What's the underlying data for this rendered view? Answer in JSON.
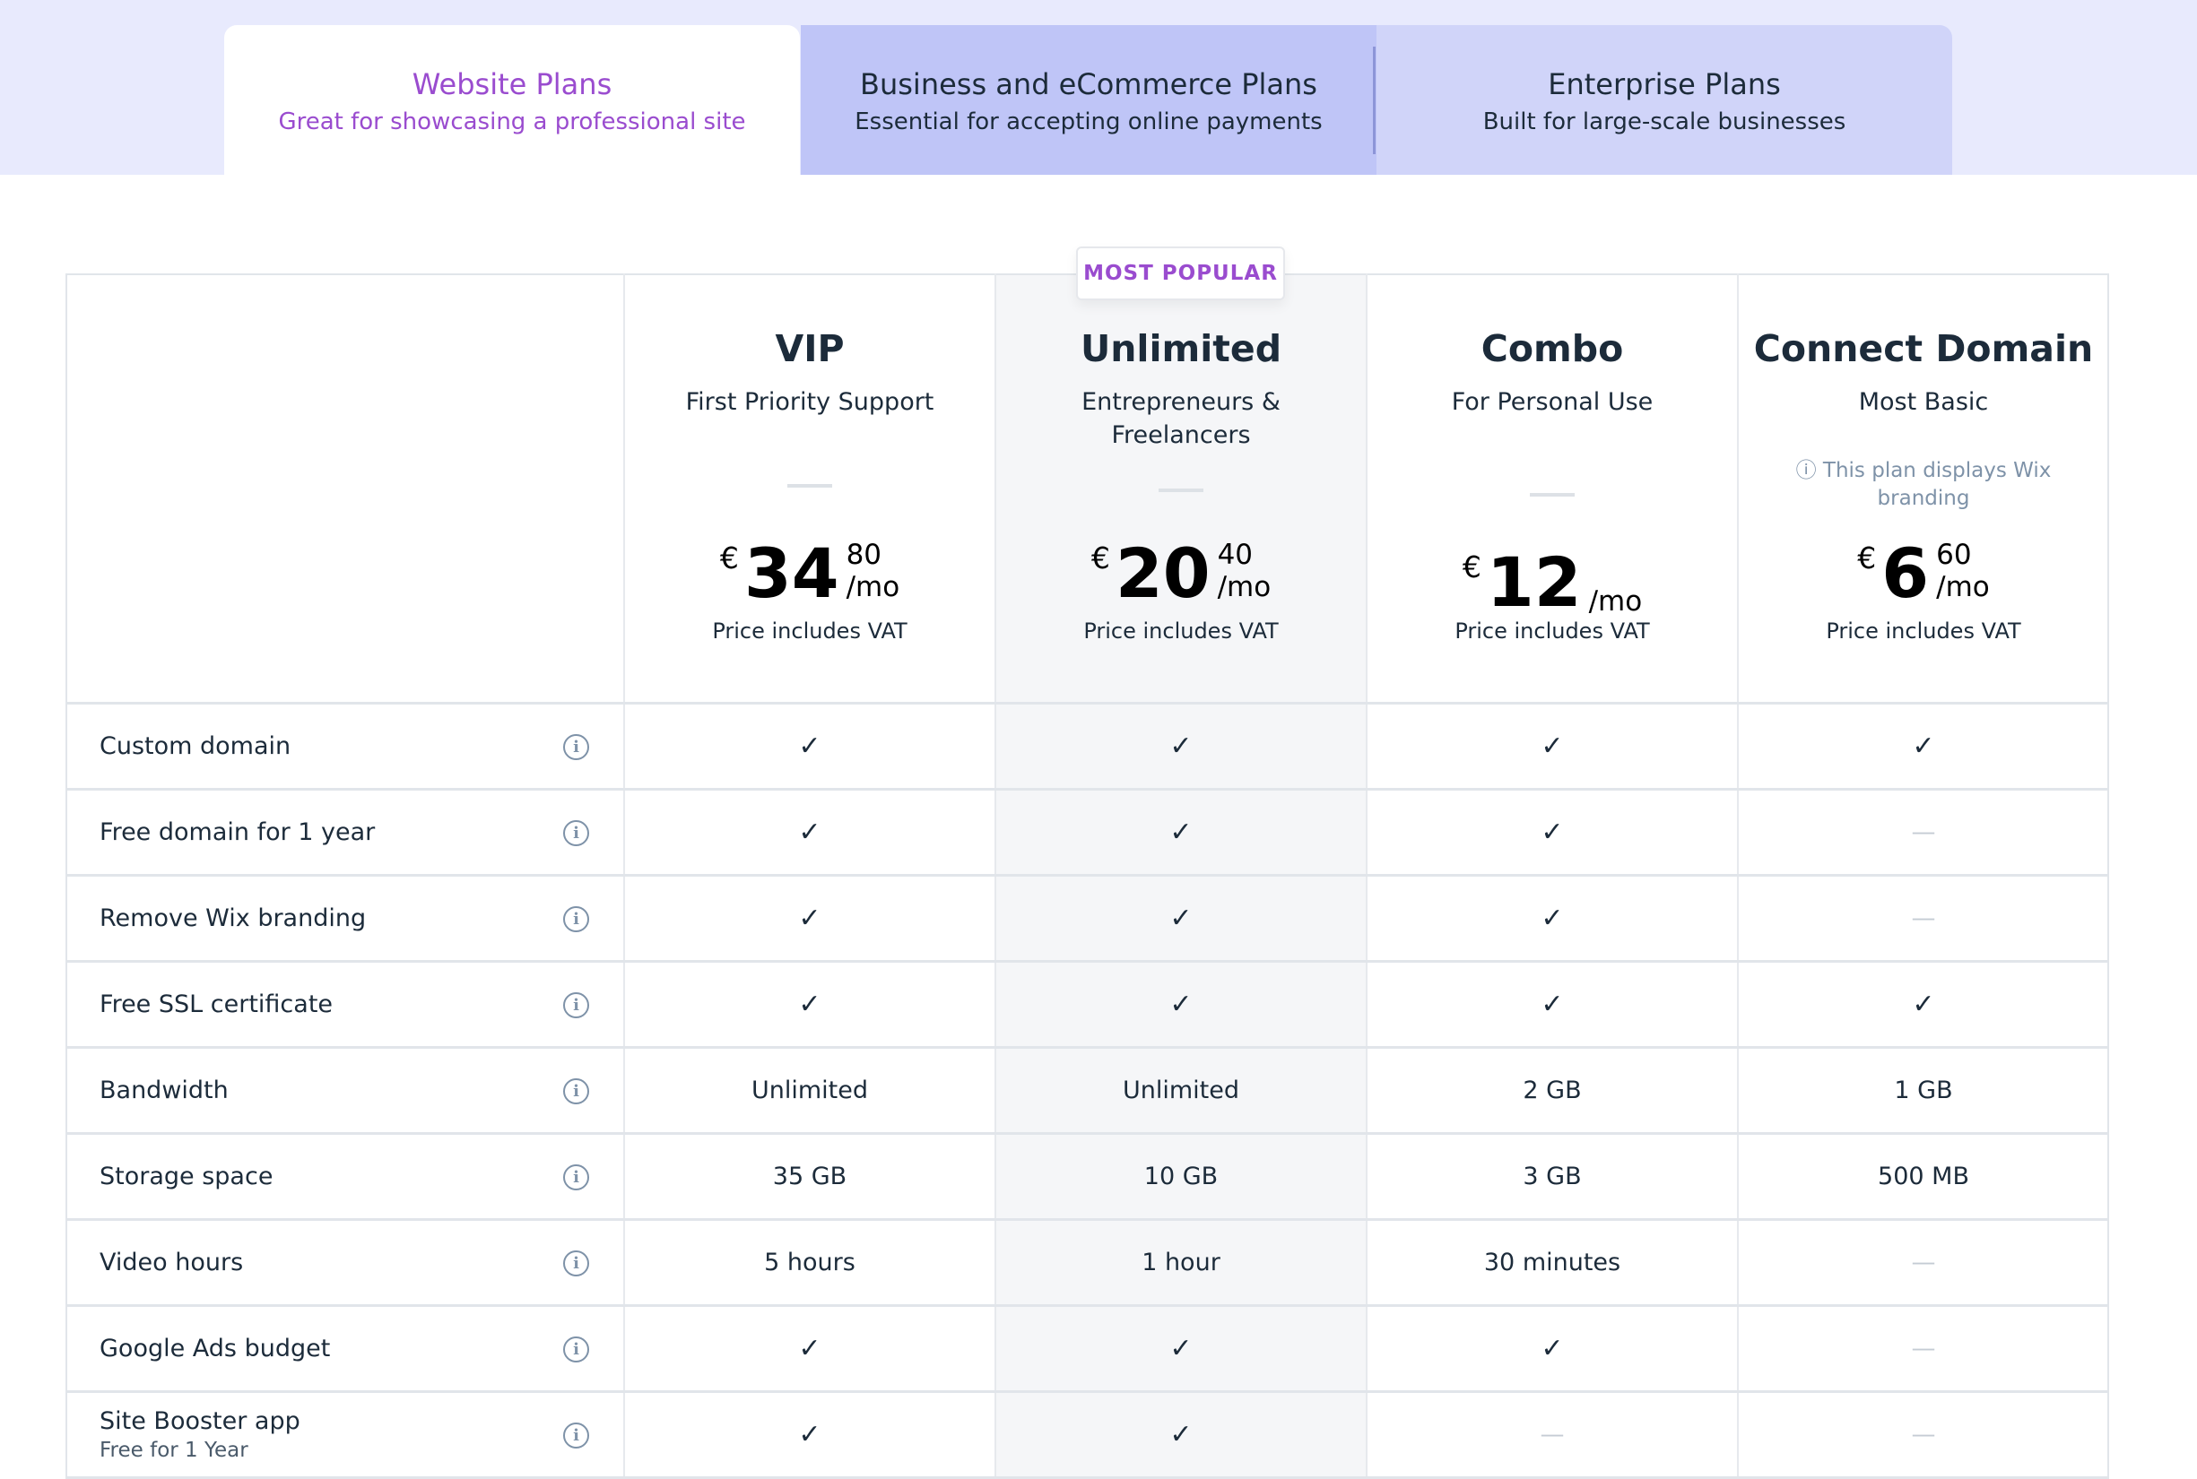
{
  "tabs": [
    {
      "title": "Website Plans",
      "subtitle": "Great for showcasing a professional site"
    },
    {
      "title": "Business and eCommerce Plans",
      "subtitle": "Essential for accepting online payments"
    },
    {
      "title": "Enterprise Plans",
      "subtitle": "Built for large-scale businesses"
    }
  ],
  "badge": "MOST POPULAR",
  "plans": [
    {
      "name": "VIP",
      "subtitle": "First Priority Support",
      "currency": "€",
      "price_int": "34",
      "price_dec": "80",
      "per": "/mo",
      "vat": "Price includes VAT"
    },
    {
      "name": "Unlimited",
      "subtitle": "Entrepreneurs & Freelancers",
      "currency": "€",
      "price_int": "20",
      "price_dec": "40",
      "per": "/mo",
      "vat": "Price includes VAT"
    },
    {
      "name": "Combo",
      "subtitle": "For Personal Use",
      "currency": "€",
      "price_int": "12",
      "price_dec": "",
      "per": "/mo",
      "vat": "Price includes VAT"
    },
    {
      "name": "Connect Domain",
      "subtitle": "Most Basic",
      "note": "This plan displays Wix branding",
      "currency": "€",
      "price_int": "6",
      "price_dec": "60",
      "per": "/mo",
      "vat": "Price includes VAT"
    }
  ],
  "features": [
    {
      "label": "Custom domain",
      "values": [
        "✓",
        "✓",
        "✓",
        "✓"
      ]
    },
    {
      "label": "Free domain for 1 year",
      "values": [
        "✓",
        "✓",
        "✓",
        "—"
      ]
    },
    {
      "label": "Remove Wix branding",
      "values": [
        "✓",
        "✓",
        "✓",
        "—"
      ]
    },
    {
      "label": "Free SSL certificate",
      "values": [
        "✓",
        "✓",
        "✓",
        "✓"
      ]
    },
    {
      "label": "Bandwidth",
      "values": [
        "Unlimited",
        "Unlimited",
        "2 GB",
        "1 GB"
      ]
    },
    {
      "label": "Storage space",
      "values": [
        "35 GB",
        "10 GB",
        "3 GB",
        "500 MB"
      ]
    },
    {
      "label": "Video hours",
      "values": [
        "5 hours",
        "1 hour",
        "30 minutes",
        "—"
      ]
    },
    {
      "label": "Google Ads budget",
      "values": [
        "✓",
        "✓",
        "✓",
        "—"
      ]
    },
    {
      "label": "Site Booster app",
      "sublabel": "Free for 1 Year",
      "values": [
        "✓",
        "✓",
        "—",
        "—"
      ]
    }
  ]
}
